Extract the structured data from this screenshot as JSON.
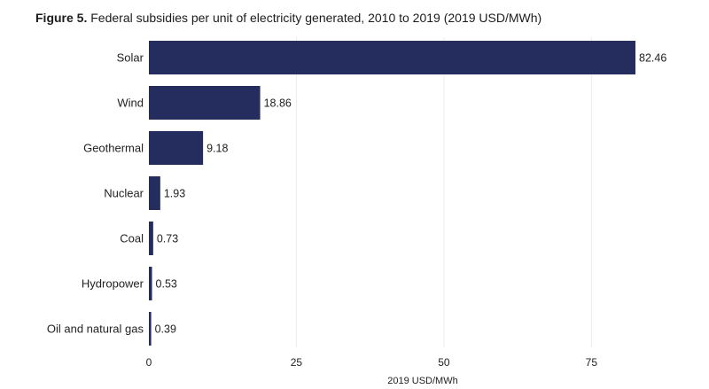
{
  "figure": {
    "number_label": "Figure 5.",
    "title_text": "Federal subsidies per unit of electricity generated, 2010 to 2019 (2019 USD/MWh)"
  },
  "chart_data": {
    "type": "bar",
    "orientation": "horizontal",
    "title": "Figure 5. Federal subsidies per unit of electricity generated, 2010 to 2019 (2019 USD/MWh)",
    "categories": [
      "Solar",
      "Wind",
      "Geothermal",
      "Nuclear",
      "Coal",
      "Hydropower",
      "Oil and natural gas"
    ],
    "values": [
      82.46,
      18.86,
      9.18,
      1.93,
      0.73,
      0.53,
      0.39
    ],
    "data_labels": [
      "82.46",
      "18.86",
      "9.18",
      "1.93",
      "0.73",
      "0.53",
      "0.39"
    ],
    "xlabel": "2019 USD/MWh",
    "ylabel": "",
    "xlim": [
      0,
      82.46
    ],
    "x_ticks": [
      0,
      25,
      50,
      75
    ],
    "x_tick_labels": [
      "0",
      "25",
      "50",
      "75"
    ],
    "grid": "vertical",
    "legend": "none",
    "colors": {
      "bar": "#252d5e",
      "grid": "#ececec",
      "text": "#222222"
    }
  }
}
